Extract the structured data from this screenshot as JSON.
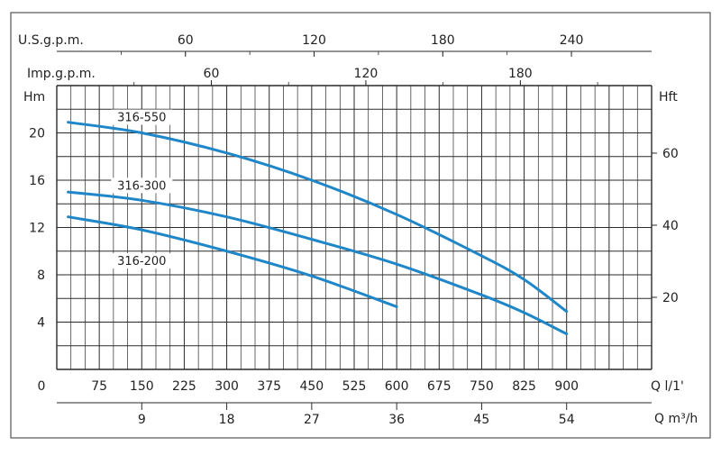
{
  "colors": {
    "curve": "#1f86c8",
    "grid": "#2a2a2a",
    "frame": "#555555",
    "text": "#222222"
  },
  "chart_data": {
    "type": "line",
    "title": "",
    "xlabel": "Q l/1'",
    "ylabel": "Hm",
    "xlim": [
      0,
      1050
    ],
    "ylim": [
      0,
      24
    ],
    "grid": true,
    "x_ticks": [
      "0",
      "75",
      "150",
      "225",
      "300",
      "375",
      "450",
      "525",
      "600",
      "675",
      "750",
      "825",
      "900"
    ],
    "y_ticks": [
      "4",
      "8",
      "12",
      "16",
      "20"
    ],
    "secondary_axes": {
      "usgpm": {
        "label": "U.S.g.p.m.",
        "ticks": [
          "60",
          "120",
          "180",
          "240"
        ]
      },
      "impgpm": {
        "label": "Imp.g.p.m.",
        "ticks": [
          "60",
          "120",
          "180"
        ]
      },
      "hft": {
        "label": "Hft",
        "ticks": [
          "20",
          "40",
          "60"
        ]
      },
      "m3h": {
        "label": "Q m³/h",
        "ticks": [
          "9",
          "18",
          "27",
          "36",
          "45",
          "54"
        ]
      }
    },
    "series": [
      {
        "name": "316-550",
        "x": [
          20,
          150,
          300,
          450,
          600,
          750,
          825,
          900
        ],
        "y": [
          20.9,
          20.0,
          18.3,
          16.0,
          13.1,
          9.6,
          7.6,
          4.9
        ]
      },
      {
        "name": "316-300",
        "x": [
          20,
          150,
          300,
          450,
          600,
          750,
          825,
          900
        ],
        "y": [
          15.0,
          14.3,
          12.9,
          11.0,
          8.9,
          6.3,
          4.8,
          3.0
        ]
      },
      {
        "name": "316-200",
        "x": [
          20,
          150,
          300,
          450,
          600
        ],
        "y": [
          12.9,
          11.8,
          10.0,
          7.9,
          5.3
        ]
      }
    ]
  }
}
